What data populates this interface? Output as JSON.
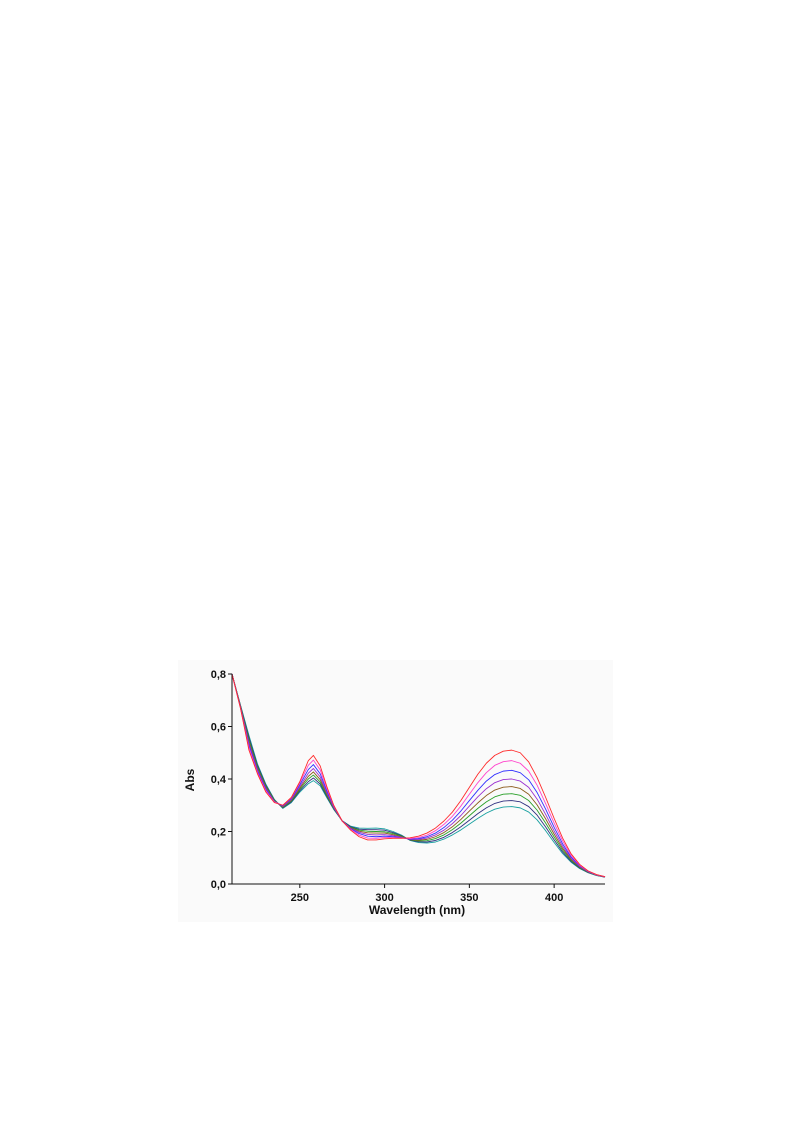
{
  "chart_data": {
    "type": "line",
    "xlabel": "Wavelength (nm)",
    "ylabel": "Abs",
    "xlim": [
      210,
      430
    ],
    "ylim": [
      0.0,
      0.8
    ],
    "xticks": [
      {
        "value": 250,
        "label": "250"
      },
      {
        "value": 300,
        "label": "300"
      },
      {
        "value": 350,
        "label": "350"
      },
      {
        "value": 400,
        "label": "400"
      }
    ],
    "yticks": [
      {
        "value": 0.0,
        "label": "0,0"
      },
      {
        "value": 0.2,
        "label": "0,2"
      },
      {
        "value": 0.4,
        "label": "0,4"
      },
      {
        "value": 0.6,
        "label": "0,6"
      },
      {
        "value": 0.8,
        "label": "0,8"
      }
    ],
    "grid": false,
    "legend": "none",
    "x": [
      210,
      215,
      220,
      225,
      230,
      235,
      240,
      245,
      250,
      255,
      258,
      262,
      266,
      270,
      275,
      280,
      285,
      290,
      295,
      300,
      305,
      310,
      315,
      320,
      325,
      330,
      335,
      340,
      345,
      350,
      355,
      360,
      365,
      370,
      375,
      380,
      385,
      390,
      395,
      400,
      405,
      410,
      415,
      420,
      425,
      430
    ],
    "series": [
      {
        "color": "#ff2a2a",
        "values": [
          0.8,
          0.67,
          0.51,
          0.42,
          0.35,
          0.31,
          0.3,
          0.33,
          0.39,
          0.47,
          0.49,
          0.45,
          0.37,
          0.3,
          0.24,
          0.205,
          0.18,
          0.168,
          0.168,
          0.172,
          0.174,
          0.174,
          0.176,
          0.182,
          0.194,
          0.213,
          0.24,
          0.274,
          0.318,
          0.368,
          0.418,
          0.46,
          0.49,
          0.506,
          0.51,
          0.5,
          0.465,
          0.405,
          0.33,
          0.25,
          0.175,
          0.115,
          0.075,
          0.05,
          0.036,
          0.028
        ]
      },
      {
        "color": "#ff44cc",
        "values": [
          0.8,
          0.67,
          0.52,
          0.425,
          0.355,
          0.312,
          0.3,
          0.328,
          0.385,
          0.452,
          0.472,
          0.435,
          0.362,
          0.298,
          0.24,
          0.208,
          0.186,
          0.175,
          0.174,
          0.177,
          0.177,
          0.175,
          0.173,
          0.177,
          0.186,
          0.203,
          0.227,
          0.258,
          0.297,
          0.342,
          0.386,
          0.424,
          0.452,
          0.466,
          0.47,
          0.46,
          0.43,
          0.376,
          0.306,
          0.232,
          0.164,
          0.109,
          0.072,
          0.049,
          0.035,
          0.028
        ]
      },
      {
        "color": "#3030ff",
        "values": [
          0.8,
          0.672,
          0.528,
          0.43,
          0.36,
          0.313,
          0.298,
          0.325,
          0.378,
          0.436,
          0.455,
          0.42,
          0.354,
          0.295,
          0.24,
          0.21,
          0.192,
          0.182,
          0.18,
          0.182,
          0.18,
          0.176,
          0.171,
          0.173,
          0.18,
          0.194,
          0.215,
          0.243,
          0.278,
          0.318,
          0.357,
          0.392,
          0.417,
          0.43,
          0.433,
          0.424,
          0.397,
          0.348,
          0.285,
          0.216,
          0.153,
          0.103,
          0.07,
          0.048,
          0.035,
          0.028
        ]
      },
      {
        "color": "#9a30d0",
        "values": [
          0.8,
          0.674,
          0.535,
          0.435,
          0.364,
          0.314,
          0.296,
          0.322,
          0.371,
          0.422,
          0.44,
          0.408,
          0.347,
          0.292,
          0.24,
          0.212,
          0.197,
          0.189,
          0.187,
          0.188,
          0.184,
          0.178,
          0.17,
          0.17,
          0.175,
          0.187,
          0.205,
          0.23,
          0.261,
          0.297,
          0.332,
          0.363,
          0.386,
          0.398,
          0.4,
          0.392,
          0.368,
          0.323,
          0.265,
          0.202,
          0.144,
          0.098,
          0.067,
          0.047,
          0.034,
          0.027
        ]
      },
      {
        "color": "#8a5a1a",
        "values": [
          0.8,
          0.676,
          0.542,
          0.44,
          0.368,
          0.316,
          0.294,
          0.319,
          0.365,
          0.41,
          0.427,
          0.398,
          0.341,
          0.29,
          0.24,
          0.214,
          0.201,
          0.195,
          0.194,
          0.194,
          0.188,
          0.18,
          0.169,
          0.167,
          0.17,
          0.18,
          0.196,
          0.218,
          0.246,
          0.278,
          0.309,
          0.337,
          0.358,
          0.369,
          0.371,
          0.364,
          0.342,
          0.301,
          0.248,
          0.19,
          0.136,
          0.094,
          0.065,
          0.046,
          0.034,
          0.027
        ]
      },
      {
        "color": "#2aa02a",
        "values": [
          0.8,
          0.678,
          0.55,
          0.446,
          0.372,
          0.318,
          0.292,
          0.316,
          0.36,
          0.4,
          0.415,
          0.389,
          0.336,
          0.288,
          0.24,
          0.216,
          0.205,
          0.201,
          0.2,
          0.199,
          0.192,
          0.182,
          0.168,
          0.164,
          0.165,
          0.173,
          0.187,
          0.207,
          0.232,
          0.26,
          0.288,
          0.313,
          0.332,
          0.342,
          0.344,
          0.338,
          0.318,
          0.281,
          0.232,
          0.179,
          0.129,
          0.09,
          0.063,
          0.045,
          0.033,
          0.027
        ]
      },
      {
        "color": "#303080",
        "values": [
          0.8,
          0.68,
          0.558,
          0.452,
          0.376,
          0.32,
          0.29,
          0.313,
          0.355,
          0.39,
          0.404,
          0.381,
          0.332,
          0.286,
          0.241,
          0.218,
          0.209,
          0.207,
          0.207,
          0.205,
          0.196,
          0.184,
          0.167,
          0.161,
          0.16,
          0.166,
          0.178,
          0.196,
          0.218,
          0.243,
          0.268,
          0.29,
          0.307,
          0.316,
          0.318,
          0.313,
          0.295,
          0.262,
          0.217,
          0.168,
          0.122,
          0.086,
          0.061,
          0.044,
          0.033,
          0.026
        ]
      },
      {
        "color": "#18a0a0",
        "values": [
          0.8,
          0.682,
          0.566,
          0.458,
          0.38,
          0.322,
          0.288,
          0.31,
          0.35,
          0.382,
          0.394,
          0.374,
          0.328,
          0.284,
          0.241,
          0.22,
          0.213,
          0.212,
          0.213,
          0.21,
          0.2,
          0.186,
          0.166,
          0.158,
          0.156,
          0.16,
          0.171,
          0.187,
          0.206,
          0.228,
          0.25,
          0.27,
          0.285,
          0.293,
          0.295,
          0.29,
          0.274,
          0.244,
          0.203,
          0.158,
          0.116,
          0.083,
          0.059,
          0.043,
          0.032,
          0.026
        ]
      }
    ]
  }
}
